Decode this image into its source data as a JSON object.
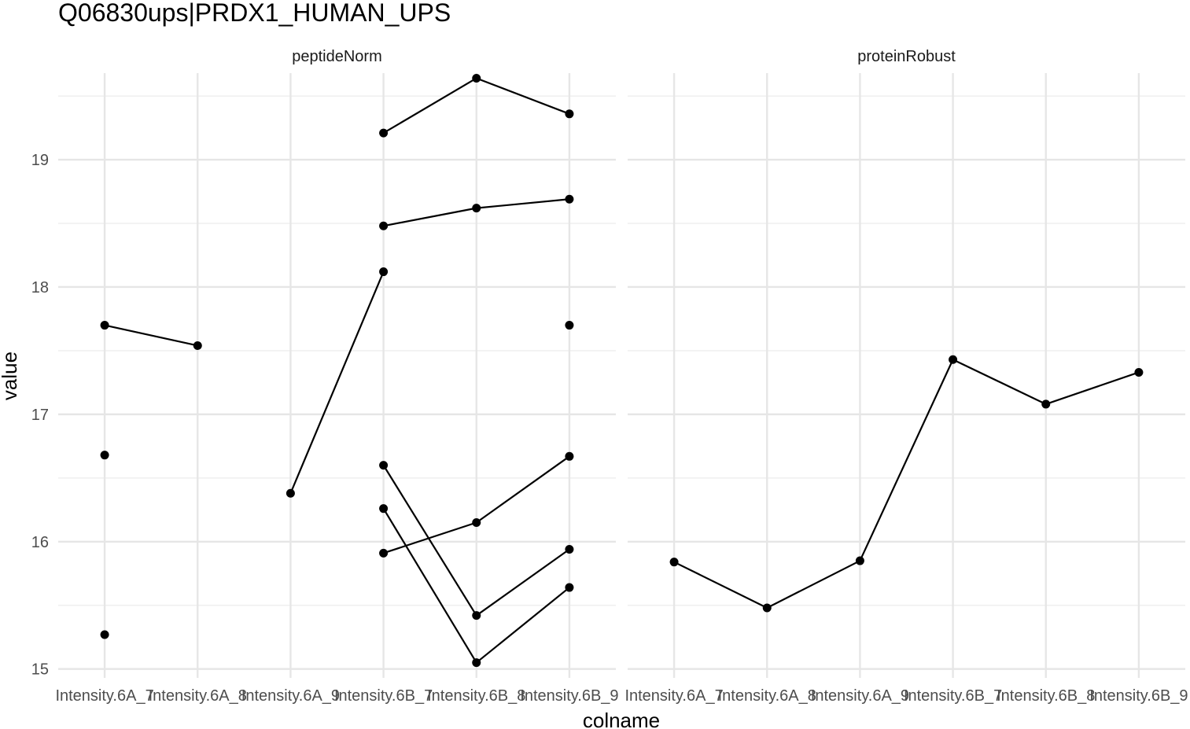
{
  "chart_data": {
    "type": "line",
    "title": "Q06830ups|PRDX1_HUMAN_UPS",
    "xlabel": "colname",
    "ylabel": "value",
    "ylim": [
      14.93,
      19.68
    ],
    "yticks": [
      15,
      16,
      17,
      18,
      19
    ],
    "categories": [
      "Intensity.6A_7",
      "Intensity.6A_8",
      "Intensity.6A_9",
      "Intensity.6B_7",
      "Intensity.6B_8",
      "Intensity.6B_9"
    ],
    "grid": true,
    "legend": "none",
    "panels": [
      {
        "name": "peptideNorm",
        "series": [
          {
            "values": [
              17.7,
              17.54,
              null,
              null,
              null,
              null
            ]
          },
          {
            "values": [
              16.68,
              null,
              null,
              null,
              null,
              null
            ]
          },
          {
            "values": [
              15.27,
              null,
              null,
              null,
              null,
              null
            ]
          },
          {
            "values": [
              null,
              null,
              16.38,
              18.12,
              null,
              null
            ]
          },
          {
            "values": [
              null,
              null,
              null,
              19.21,
              19.64,
              19.36
            ]
          },
          {
            "values": [
              null,
              null,
              null,
              18.48,
              18.62,
              18.69
            ]
          },
          {
            "values": [
              null,
              null,
              null,
              16.6,
              15.42,
              15.94
            ]
          },
          {
            "values": [
              null,
              null,
              null,
              16.26,
              15.05,
              15.64
            ]
          },
          {
            "values": [
              null,
              null,
              null,
              15.91,
              16.15,
              16.67
            ]
          },
          {
            "values": [
              null,
              null,
              null,
              null,
              null,
              17.7
            ]
          }
        ]
      },
      {
        "name": "proteinRobust",
        "series": [
          {
            "values": [
              15.84,
              15.48,
              15.85,
              17.43,
              17.08,
              17.33
            ]
          }
        ]
      }
    ]
  }
}
